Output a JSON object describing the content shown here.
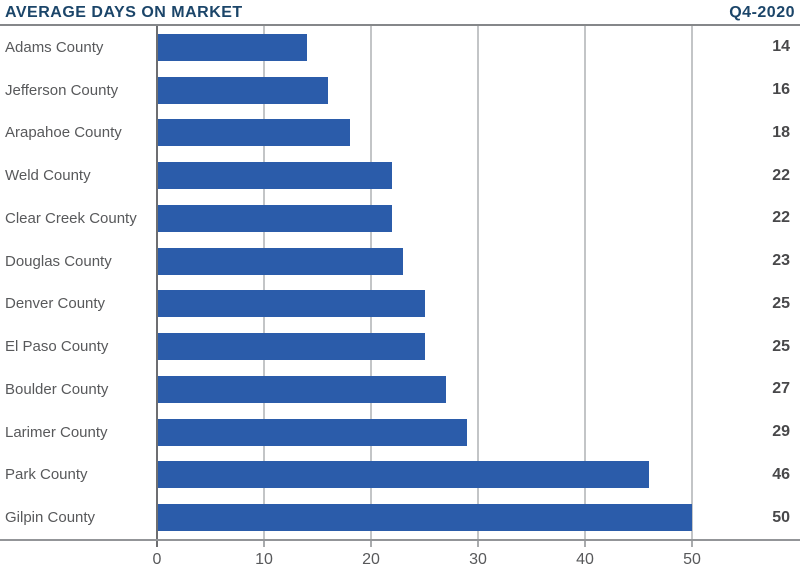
{
  "header": {
    "title": "AVERAGE DAYS ON MARKET",
    "period": "Q4-2020"
  },
  "chart_data": {
    "type": "bar",
    "orientation": "horizontal",
    "title": "AVERAGE DAYS ON MARKET",
    "subtitle": "Q4-2020",
    "categories": [
      "Adams County",
      "Jefferson County",
      "Arapahoe County",
      "Weld County",
      "Clear Creek County",
      "Douglas County",
      "Denver County",
      "El Paso County",
      "Boulder County",
      "Larimer County",
      "Park County",
      "Gilpin County"
    ],
    "values": [
      14,
      16,
      18,
      22,
      22,
      23,
      25,
      25,
      27,
      29,
      46,
      50
    ],
    "xlabel": "",
    "ylabel": "",
    "xlim": [
      0,
      60
    ],
    "xticks": [
      0,
      10,
      20,
      30,
      40,
      50
    ],
    "grid": true,
    "legend": "none",
    "value_labels_position": "right-edge"
  },
  "colors": {
    "bar": "#2b5caa",
    "title": "#1b4569",
    "category_label": "#58595b",
    "value_label": "#48484a",
    "tick_label": "#58595b",
    "gridline": "#c3c5c7",
    "axis_line": "#6d6e71",
    "header_rule": "#85878a",
    "baseline": "#939598"
  }
}
